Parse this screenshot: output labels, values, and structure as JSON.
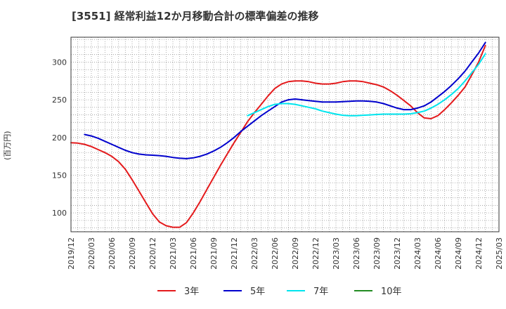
{
  "title": "[3551]  経常利益12か月移動合計の標準偏差の推移",
  "chart_data": {
    "type": "line",
    "title": "[3551]  経常利益12か月移動合計の標準偏差の推移",
    "ylabel": "(百万円)",
    "xlabel": "",
    "x_ticks": [
      "2019/12",
      "2020/03",
      "2020/06",
      "2020/09",
      "2020/12",
      "2021/03",
      "2021/06",
      "2021/09",
      "2021/12",
      "2022/03",
      "2022/06",
      "2022/09",
      "2022/12",
      "2023/03",
      "2023/06",
      "2023/09",
      "2023/12",
      "2024/03",
      "2024/06",
      "2024/09",
      "2024/12",
      "2025/03"
    ],
    "y_ticks": [
      100,
      150,
      200,
      250,
      300
    ],
    "ylim": [
      75,
      333
    ],
    "xlim": [
      "2019/12",
      "2025/03"
    ],
    "grid": true,
    "legend_position": "bottom",
    "series": [
      {
        "name": "3年",
        "color": "#e41a1c",
        "points": [
          [
            "2019/12",
            193
          ],
          [
            "2020/01",
            192.5
          ],
          [
            "2020/02",
            191
          ],
          [
            "2020/03",
            188
          ],
          [
            "2020/04",
            184
          ],
          [
            "2020/05",
            180
          ],
          [
            "2020/06",
            175
          ],
          [
            "2020/07",
            168
          ],
          [
            "2020/08",
            158
          ],
          [
            "2020/09",
            144
          ],
          [
            "2020/10",
            129
          ],
          [
            "2020/11",
            114
          ],
          [
            "2020/12",
            99
          ],
          [
            "2021/01",
            88
          ],
          [
            "2021/02",
            83
          ],
          [
            "2021/03",
            81
          ],
          [
            "2021/04",
            81
          ],
          [
            "2021/05",
            87
          ],
          [
            "2021/06",
            100
          ],
          [
            "2021/07",
            115
          ],
          [
            "2021/08",
            131
          ],
          [
            "2021/09",
            147
          ],
          [
            "2021/10",
            163
          ],
          [
            "2021/11",
            178
          ],
          [
            "2021/12",
            193
          ],
          [
            "2022/01",
            207
          ],
          [
            "2022/02",
            221
          ],
          [
            "2022/03",
            233
          ],
          [
            "2022/04",
            244
          ],
          [
            "2022/05",
            255
          ],
          [
            "2022/06",
            265
          ],
          [
            "2022/07",
            271
          ],
          [
            "2022/08",
            274
          ],
          [
            "2022/09",
            275
          ],
          [
            "2022/10",
            275
          ],
          [
            "2022/11",
            274
          ],
          [
            "2022/12",
            272
          ],
          [
            "2023/01",
            271
          ],
          [
            "2023/02",
            271
          ],
          [
            "2023/03",
            272
          ],
          [
            "2023/04",
            274
          ],
          [
            "2023/05",
            275
          ],
          [
            "2023/06",
            275
          ],
          [
            "2023/07",
            274
          ],
          [
            "2023/08",
            272
          ],
          [
            "2023/09",
            270
          ],
          [
            "2023/10",
            267
          ],
          [
            "2023/11",
            262
          ],
          [
            "2023/12",
            256
          ],
          [
            "2024/01",
            249
          ],
          [
            "2024/02",
            242
          ],
          [
            "2024/03",
            233
          ],
          [
            "2024/04",
            226
          ],
          [
            "2024/05",
            225
          ],
          [
            "2024/06",
            229
          ],
          [
            "2024/07",
            237
          ],
          [
            "2024/08",
            246
          ],
          [
            "2024/09",
            256
          ],
          [
            "2024/10",
            267
          ],
          [
            "2024/11",
            283
          ],
          [
            "2024/12",
            300
          ],
          [
            "2025/01",
            322
          ]
        ]
      },
      {
        "name": "5年",
        "color": "#0000cd",
        "points": [
          [
            "2020/02",
            204
          ],
          [
            "2020/03",
            202
          ],
          [
            "2020/04",
            199
          ],
          [
            "2020/05",
            195
          ],
          [
            "2020/06",
            191
          ],
          [
            "2020/07",
            187
          ],
          [
            "2020/08",
            183
          ],
          [
            "2020/09",
            180
          ],
          [
            "2020/10",
            178
          ],
          [
            "2020/11",
            177
          ],
          [
            "2020/12",
            176.5
          ],
          [
            "2021/01",
            176
          ],
          [
            "2021/02",
            175
          ],
          [
            "2021/03",
            173.5
          ],
          [
            "2021/04",
            172.5
          ],
          [
            "2021/05",
            172
          ],
          [
            "2021/06",
            173
          ],
          [
            "2021/07",
            175
          ],
          [
            "2021/08",
            178
          ],
          [
            "2021/09",
            182
          ],
          [
            "2021/10",
            187
          ],
          [
            "2021/11",
            193
          ],
          [
            "2021/12",
            200
          ],
          [
            "2022/01",
            208
          ],
          [
            "2022/02",
            215
          ],
          [
            "2022/03",
            222
          ],
          [
            "2022/04",
            229
          ],
          [
            "2022/05",
            235
          ],
          [
            "2022/06",
            241
          ],
          [
            "2022/07",
            247
          ],
          [
            "2022/08",
            250
          ],
          [
            "2022/09",
            251
          ],
          [
            "2022/10",
            250
          ],
          [
            "2022/11",
            249
          ],
          [
            "2022/12",
            248
          ],
          [
            "2023/01",
            247
          ],
          [
            "2023/02",
            247
          ],
          [
            "2023/03",
            247
          ],
          [
            "2023/04",
            247.5
          ],
          [
            "2023/05",
            248
          ],
          [
            "2023/06",
            248.5
          ],
          [
            "2023/07",
            248.5
          ],
          [
            "2023/08",
            248
          ],
          [
            "2023/09",
            247
          ],
          [
            "2023/10",
            245
          ],
          [
            "2023/11",
            242
          ],
          [
            "2023/12",
            239
          ],
          [
            "2024/01",
            237
          ],
          [
            "2024/02",
            237
          ],
          [
            "2024/03",
            239
          ],
          [
            "2024/04",
            242
          ],
          [
            "2024/05",
            247
          ],
          [
            "2024/06",
            254
          ],
          [
            "2024/07",
            261
          ],
          [
            "2024/08",
            269
          ],
          [
            "2024/09",
            278
          ],
          [
            "2024/10",
            288
          ],
          [
            "2024/11",
            300
          ],
          [
            "2024/12",
            312
          ],
          [
            "2025/01",
            326
          ]
        ]
      },
      {
        "name": "7年",
        "color": "#00e5ee",
        "points": [
          [
            "2022/02",
            229
          ],
          [
            "2022/03",
            233
          ],
          [
            "2022/04",
            237
          ],
          [
            "2022/05",
            241
          ],
          [
            "2022/06",
            244
          ],
          [
            "2022/07",
            245
          ],
          [
            "2022/08",
            245
          ],
          [
            "2022/09",
            244
          ],
          [
            "2022/10",
            242
          ],
          [
            "2022/11",
            240
          ],
          [
            "2022/12",
            238
          ],
          [
            "2023/01",
            235
          ],
          [
            "2023/02",
            233
          ],
          [
            "2023/03",
            231
          ],
          [
            "2023/04",
            229.5
          ],
          [
            "2023/05",
            229
          ],
          [
            "2023/06",
            229
          ],
          [
            "2023/07",
            229.5
          ],
          [
            "2023/08",
            230
          ],
          [
            "2023/09",
            230.5
          ],
          [
            "2023/10",
            231
          ],
          [
            "2023/11",
            231
          ],
          [
            "2023/12",
            231
          ],
          [
            "2024/01",
            231
          ],
          [
            "2024/02",
            231.5
          ],
          [
            "2024/03",
            233
          ],
          [
            "2024/04",
            235
          ],
          [
            "2024/05",
            239
          ],
          [
            "2024/06",
            244
          ],
          [
            "2024/07",
            250
          ],
          [
            "2024/08",
            257
          ],
          [
            "2024/09",
            265
          ],
          [
            "2024/10",
            275
          ],
          [
            "2024/11",
            286
          ],
          [
            "2024/12",
            297
          ],
          [
            "2025/01",
            311
          ]
        ]
      },
      {
        "name": "10年",
        "color": "#228b22",
        "points": []
      }
    ]
  }
}
